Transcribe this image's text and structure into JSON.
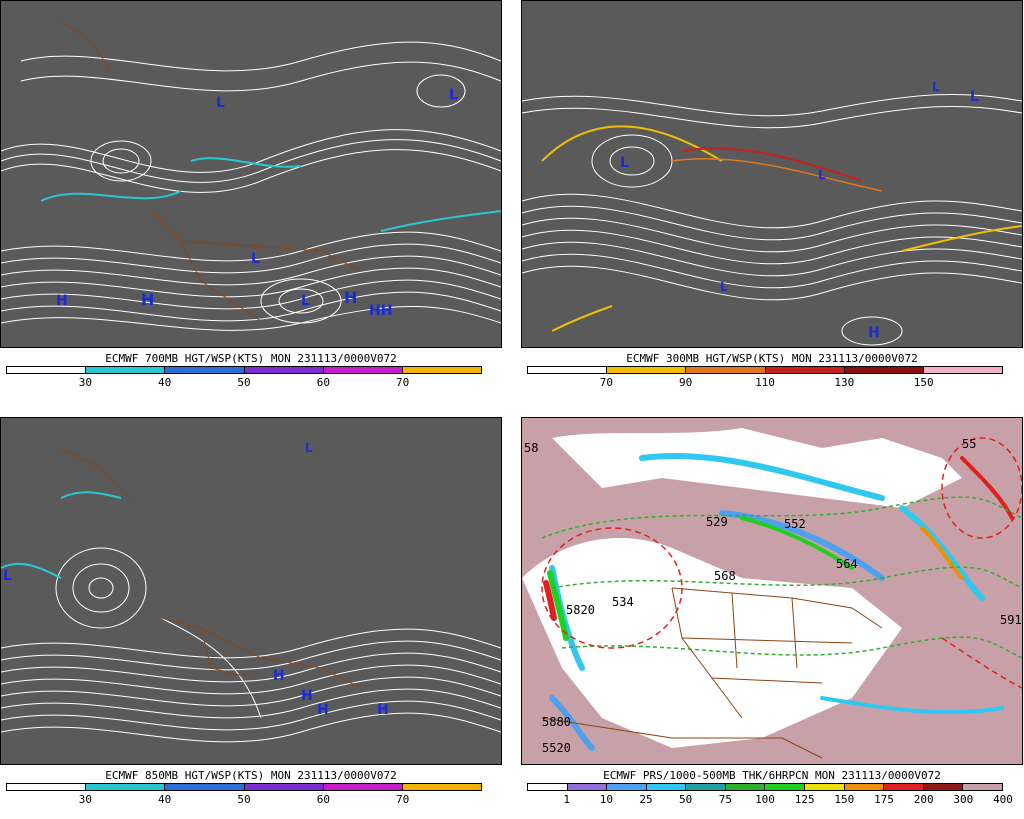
{
  "panels": [
    {
      "title": "ECMWF 700MB HGT/WSP(KTS) MON 231113/0000V072",
      "colors": [
        "#ffffff",
        "#28c8d2",
        "#2a6fd6",
        "#7a2fd0",
        "#c81ec8",
        "#f0b400"
      ],
      "ticks": [
        "30",
        "40",
        "50",
        "60",
        "70"
      ]
    },
    {
      "title": "ECMWF 300MB HGT/WSP(KTS) MON 231113/0000V072",
      "colors": [
        "#ffffff",
        "#f0c000",
        "#e07820",
        "#c82020",
        "#8a1010",
        "#f0b0c8"
      ],
      "ticks": [
        "70",
        "90",
        "110",
        "130",
        "150"
      ]
    },
    {
      "title": "ECMWF 850MB HGT/WSP(KTS) MON 231113/0000V072",
      "colors": [
        "#ffffff",
        "#28c8d2",
        "#2a6fd6",
        "#7a2fd0",
        "#c81ec8",
        "#f0b400"
      ],
      "ticks": [
        "30",
        "40",
        "50",
        "60",
        "70"
      ]
    },
    {
      "title": "ECMWF PRS/1000-500MB THK/6HRPCN MON 231113/0000V072",
      "colors": [
        "#ffffff",
        "#9070d8",
        "#50a0f0",
        "#30c8f0",
        "#20a0a0",
        "#30b030",
        "#20d020",
        "#f0e000",
        "#f09000",
        "#e02020",
        "#901818",
        "#c8a0a8"
      ],
      "ticks": [
        "1",
        "10",
        "25",
        "50",
        "75",
        "100",
        "125",
        "150",
        "175",
        "200",
        "300",
        "400"
      ]
    }
  ],
  "map_labels": {
    "p1": [
      "L",
      "L",
      "L",
      "L",
      "H",
      "H",
      "H",
      "HH"
    ],
    "p2": [
      "L",
      "L",
      "L",
      "L",
      "L",
      "H"
    ],
    "p3": [
      "L",
      "L",
      "H",
      "H",
      "H",
      "H"
    ],
    "p4": [
      "568",
      "5820",
      "5880",
      "552",
      "529",
      "564",
      "58",
      "55",
      "534",
      "591",
      "5520"
    ]
  },
  "theme": {
    "stream_gray": "#5a5a5a",
    "border_brown": "#8b4513",
    "label_blue": "#1c2bd8",
    "land_mauve": "#c8a0a8"
  }
}
